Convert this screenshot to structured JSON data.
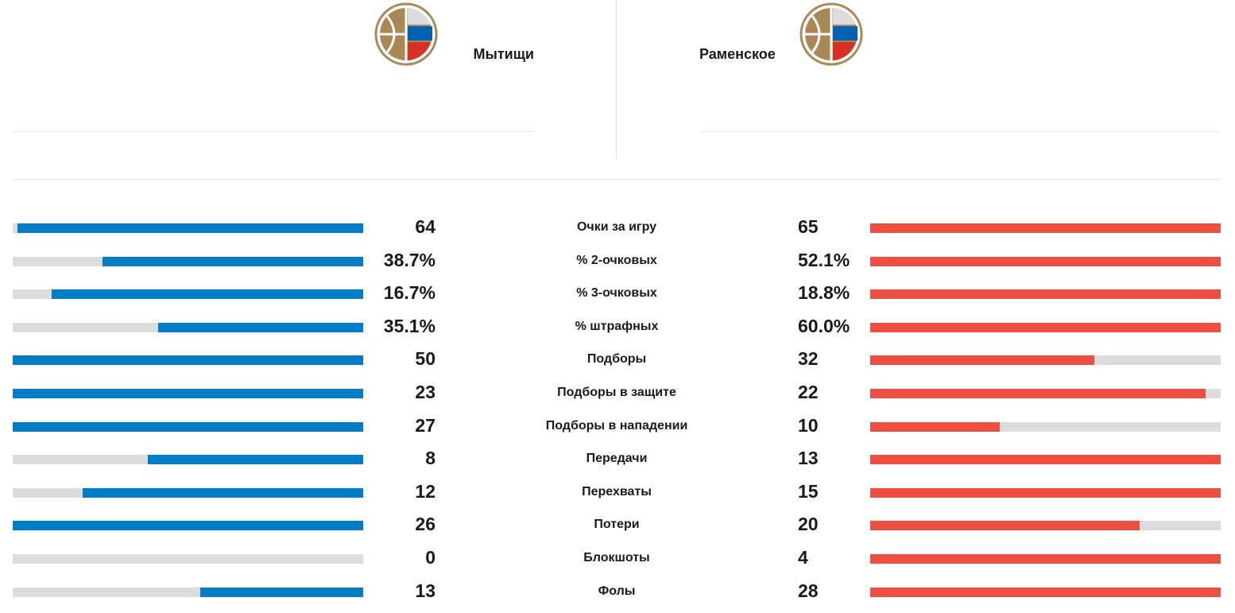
{
  "teams": {
    "home": {
      "name": "Мытищи",
      "logo": "basketball-federation-logo",
      "bar_color": "#007dc5"
    },
    "away": {
      "name": "Раменское",
      "logo": "basketball-federation-logo",
      "bar_color": "#ef4f41"
    }
  },
  "logo_colors": {
    "gold": "#a98855",
    "blue": "#0063b1",
    "red": "#d93025",
    "grey": "#dcdcdc"
  },
  "stats": [
    {
      "label": "Очки за игру",
      "home": "64",
      "away": "65",
      "home_fill": 0.986,
      "away_fill": 1.0
    },
    {
      "label": "% 2-очковых",
      "home": "38.7%",
      "away": "52.1%",
      "home_fill": 0.743,
      "away_fill": 1.0
    },
    {
      "label": "% 3-очковых",
      "home": "16.7%",
      "away": "18.8%",
      "home_fill": 0.888,
      "away_fill": 1.0
    },
    {
      "label": "% штрафных",
      "home": "35.1%",
      "away": "60.0%",
      "home_fill": 0.585,
      "away_fill": 1.0
    },
    {
      "label": "Подборы",
      "home": "50",
      "away": "32",
      "home_fill": 1.0,
      "away_fill": 0.64
    },
    {
      "label": "Подборы в защите",
      "home": "23",
      "away": "22",
      "home_fill": 1.0,
      "away_fill": 0.957
    },
    {
      "label": "Подборы в нападении",
      "home": "27",
      "away": "10",
      "home_fill": 1.0,
      "away_fill": 0.37
    },
    {
      "label": "Передачи",
      "home": "8",
      "away": "13",
      "home_fill": 0.615,
      "away_fill": 1.0
    },
    {
      "label": "Перехваты",
      "home": "12",
      "away": "15",
      "home_fill": 0.8,
      "away_fill": 1.0
    },
    {
      "label": "Потери",
      "home": "26",
      "away": "20",
      "home_fill": 1.0,
      "away_fill": 0.769
    },
    {
      "label": "Блокшоты",
      "home": "0",
      "away": "4",
      "home_fill": 0.0,
      "away_fill": 1.0
    },
    {
      "label": "Фолы",
      "home": "13",
      "away": "28",
      "home_fill": 0.464,
      "away_fill": 1.0
    }
  ]
}
